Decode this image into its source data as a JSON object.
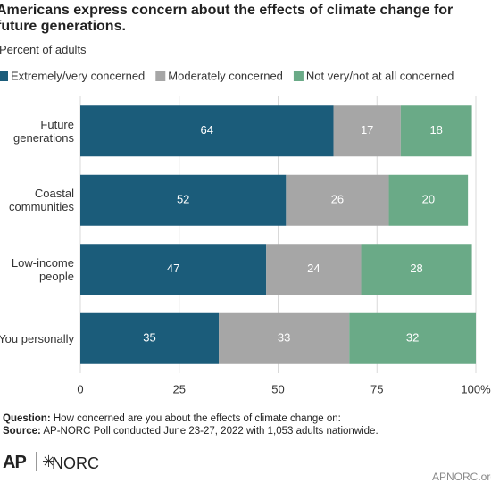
{
  "chart_data": {
    "type": "stacked_bar_horizontal",
    "title": "Americans express concern about the effects of climate change for future generations.",
    "subtitle": "Percent of adults",
    "categories": [
      "Future generations",
      "Coastal communities",
      "Low-income people",
      "You personally"
    ],
    "series": [
      {
        "name": "Extremely/very concerned",
        "color": "#1b5c7a",
        "values": [
          64,
          52,
          47,
          35
        ]
      },
      {
        "name": "Moderately concerned",
        "color": "#a6a6a6",
        "values": [
          17,
          26,
          24,
          33
        ]
      },
      {
        "name": "Not very/not at all concerned",
        "color": "#6aaa87",
        "values": [
          18,
          20,
          28,
          32
        ]
      }
    ],
    "xlim": [
      0,
      100
    ],
    "xticks": [
      0,
      25,
      50,
      75,
      {
        "value": 100,
        "label": "100%"
      }
    ],
    "grid": true
  },
  "footer": {
    "question_label": "Question:",
    "question": "How concerned are you about the effects of climate change on:",
    "source_label": "Source:",
    "source": "AP-NORC Poll conducted June 23-27, 2022 with 1,053 adults nationwide.",
    "logo_ap": "AP",
    "logo_norc": "NORC",
    "site": "APNORC.org"
  }
}
